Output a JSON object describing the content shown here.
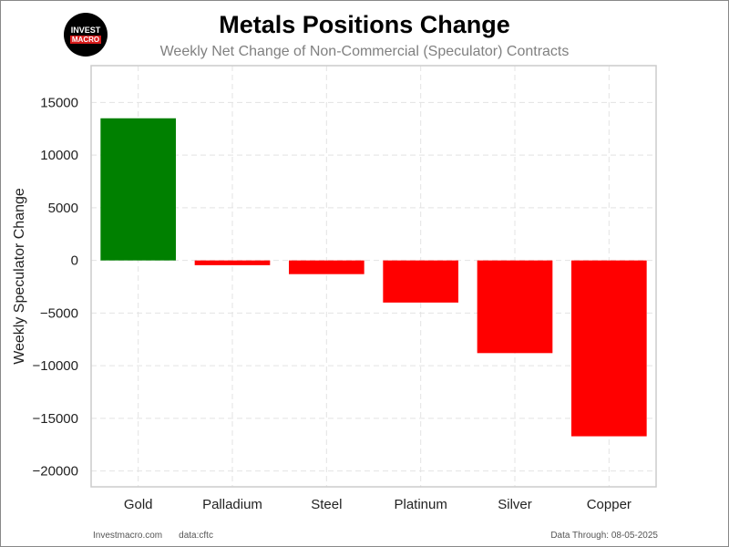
{
  "logo": {
    "line1": "INVEST",
    "line2": "MACRO"
  },
  "footer": {
    "site": "Investmacro.com",
    "source": "data:cftc",
    "date_note": "Data Through: 08-05-2025"
  },
  "chart_data": {
    "type": "bar",
    "title": "Metals Positions Change",
    "subtitle": "Weekly Net Change of Non-Commercial (Speculator) Contracts",
    "xlabel": "",
    "ylabel": "Weekly Speculator Change",
    "categories": [
      "Gold",
      "Palladium",
      "Steel",
      "Platinum",
      "Silver",
      "Copper"
    ],
    "values": [
      13500,
      -450,
      -1300,
      -4000,
      -8800,
      -16700
    ],
    "colors": [
      "#008000",
      "#ff0000",
      "#ff0000",
      "#ff0000",
      "#ff0000",
      "#ff0000"
    ],
    "yticks": [
      15000,
      10000,
      5000,
      0,
      -5000,
      -10000,
      -15000,
      -20000
    ],
    "ytick_labels": [
      "15000",
      "10000",
      "5000",
      "0",
      "−5000",
      "−10000",
      "−15000",
      "−20000"
    ],
    "ylim": [
      -21500,
      18500
    ],
    "grid": true,
    "legend": "none"
  }
}
